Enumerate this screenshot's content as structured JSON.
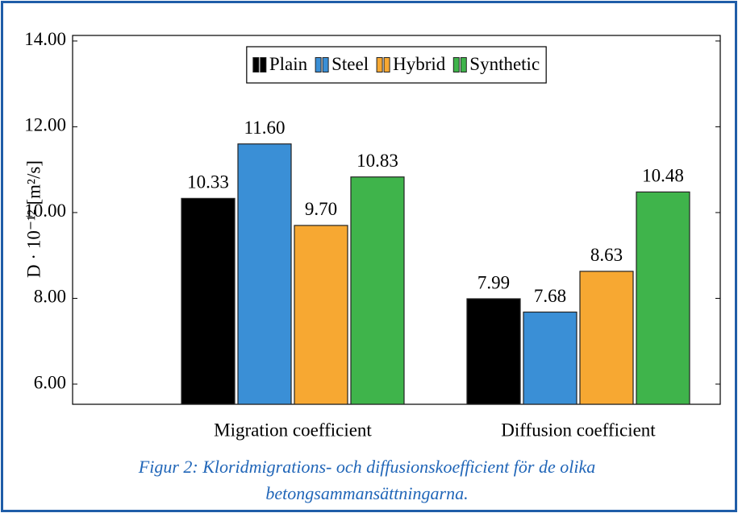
{
  "chart_data": {
    "type": "bar",
    "y_label": "D · 10⁻¹² [m²/s]",
    "categories": [
      "Migration coefficient",
      "Diffusion coefficient"
    ],
    "series": [
      {
        "name": "Plain",
        "color": "#000000",
        "values": [
          10.33,
          7.99
        ],
        "value_labels": [
          "10.33",
          "7.99"
        ]
      },
      {
        "name": "Steel",
        "color": "#3a8fd6",
        "values": [
          11.6,
          7.68
        ],
        "value_labels": [
          "11.60",
          "7.68"
        ]
      },
      {
        "name": "Hybrid",
        "color": "#f7a832",
        "values": [
          9.7,
          8.63
        ],
        "value_labels": [
          "9.70",
          "8.63"
        ]
      },
      {
        "name": "Synthetic",
        "color": "#3fb44b",
        "values": [
          10.83,
          10.48
        ],
        "value_labels": [
          "10.83",
          "10.48"
        ]
      }
    ],
    "ylim": [
      5.53,
      14.13
    ],
    "yticks": [
      {
        "value": 6,
        "label": "6.00"
      },
      {
        "value": 8,
        "label": "8.00"
      },
      {
        "value": 10,
        "label": "10.00"
      },
      {
        "value": 12,
        "label": "12.00"
      },
      {
        "value": 14,
        "label": "14.00"
      }
    ],
    "grid": false,
    "legend_position": "top",
    "caption": "Figur 2: Kloridmigrations- och diffusionskoefficient för de olika betongsammansättningarna."
  }
}
